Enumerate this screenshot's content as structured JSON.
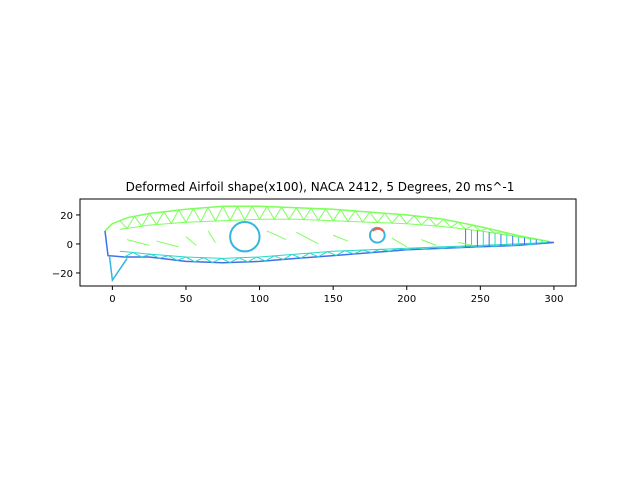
{
  "chart_data": {
    "type": "line",
    "title": "Deformed Airfoil shape(x100), NACA 2412, 5 Degrees, 20 ms^-1",
    "xlabel": "",
    "ylabel": "",
    "xlim": [
      -22,
      315
    ],
    "ylim": [
      -29,
      31
    ],
    "xticks": [
      0,
      50,
      100,
      150,
      200,
      250,
      300
    ],
    "yticks": [
      -20,
      0,
      20
    ],
    "grid": false,
    "equal_aspect": true,
    "colors": {
      "upper": "#7dff5c",
      "lower": "#3f6fef",
      "mid": "#2ad8c8",
      "hole": "#35b5e0",
      "hole_accent": "#ff5a3c"
    },
    "upper_surface": [
      [
        -5,
        9
      ],
      [
        0,
        14
      ],
      [
        10,
        18
      ],
      [
        25,
        21
      ],
      [
        50,
        24
      ],
      [
        75,
        26
      ],
      [
        100,
        26
      ],
      [
        125,
        25
      ],
      [
        150,
        24
      ],
      [
        175,
        22
      ],
      [
        200,
        20
      ],
      [
        225,
        17
      ],
      [
        250,
        12
      ],
      [
        275,
        6
      ],
      [
        300,
        1
      ]
    ],
    "lower_surface": [
      [
        -5,
        9
      ],
      [
        -3,
        -8
      ],
      [
        8,
        -9
      ],
      [
        25,
        -9
      ],
      [
        50,
        -12
      ],
      [
        75,
        -13
      ],
      [
        100,
        -12
      ],
      [
        125,
        -10
      ],
      [
        150,
        -8
      ],
      [
        175,
        -6
      ],
      [
        200,
        -4
      ],
      [
        225,
        -3
      ],
      [
        250,
        -2
      ],
      [
        275,
        -1
      ],
      [
        300,
        1
      ]
    ],
    "inner_upper": [
      [
        5,
        10
      ],
      [
        25,
        13
      ],
      [
        50,
        15
      ],
      [
        75,
        16
      ],
      [
        100,
        17
      ],
      [
        125,
        17
      ],
      [
        150,
        16
      ],
      [
        175,
        15
      ],
      [
        200,
        14
      ],
      [
        225,
        12
      ],
      [
        250,
        9
      ],
      [
        275,
        5
      ],
      [
        295,
        2
      ]
    ],
    "inner_lower": [
      [
        5,
        -5
      ],
      [
        25,
        -7
      ],
      [
        50,
        -9
      ],
      [
        75,
        -10
      ],
      [
        100,
        -9
      ],
      [
        125,
        -7
      ],
      [
        150,
        -5
      ],
      [
        175,
        -4
      ],
      [
        200,
        -3
      ],
      [
        225,
        -2
      ],
      [
        250,
        -1
      ],
      [
        275,
        0
      ],
      [
        295,
        1
      ]
    ],
    "tail_spike": [
      [
        -2,
        -8
      ],
      [
        0,
        -25
      ],
      [
        10,
        -10
      ]
    ],
    "holes": [
      {
        "cx": 90,
        "cy": 5,
        "r": 10
      },
      {
        "cx": 180,
        "cy": 6,
        "r": 5
      }
    ]
  }
}
